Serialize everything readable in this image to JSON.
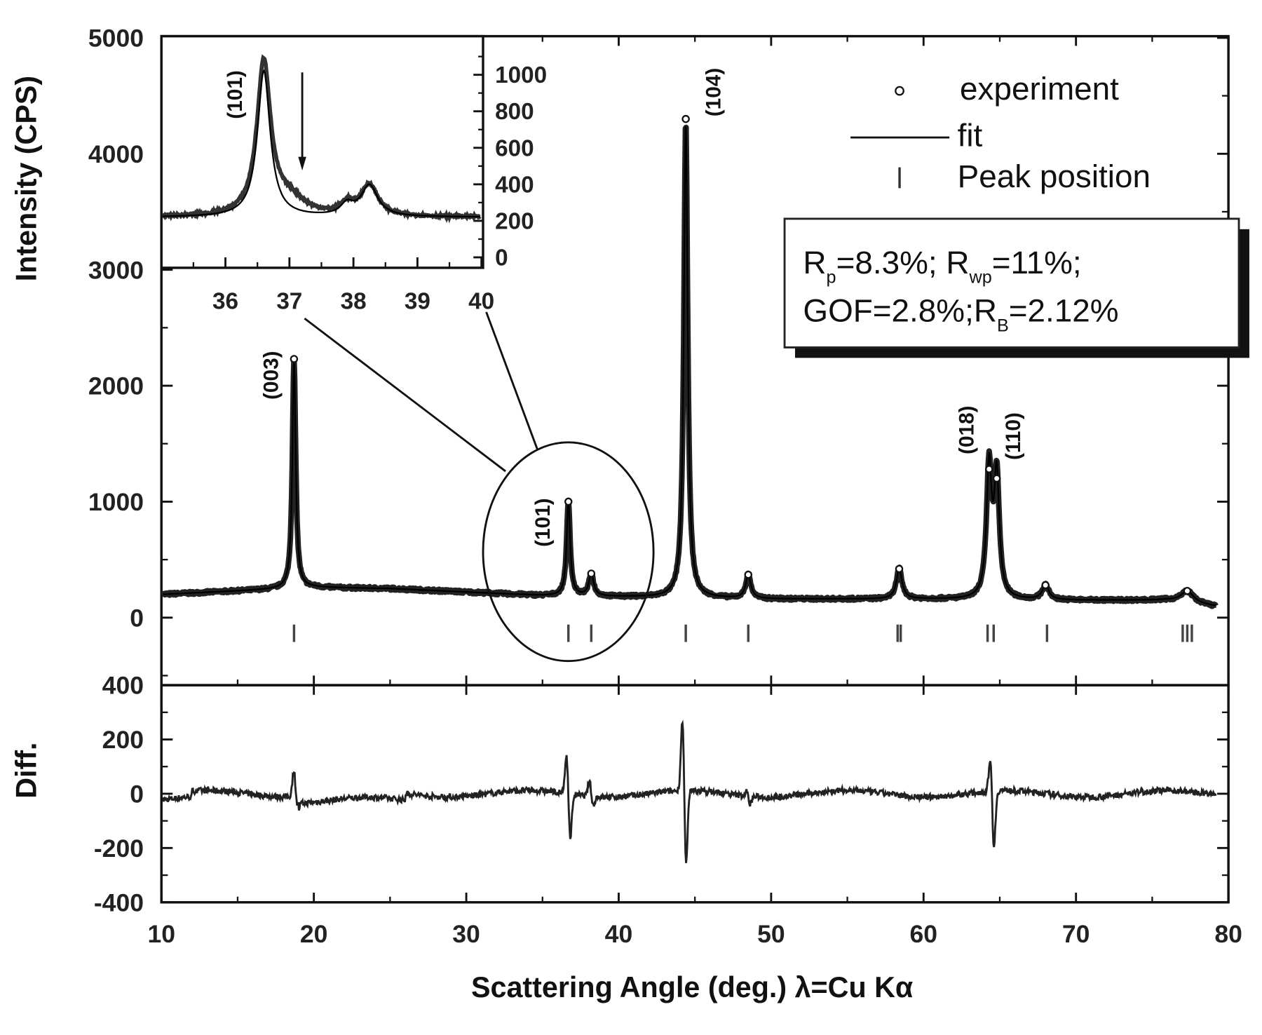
{
  "chart_data": {
    "type": "line",
    "xlabel": "Scattering Angle (deg.) λ=Cu Kα",
    "ylabel": "Intensity (CPS)",
    "diff_ylabel": "Diff.",
    "xlim": [
      10,
      80
    ],
    "ylim": [
      -580,
      5000
    ],
    "diff_ylim": [
      -400,
      400
    ],
    "x_ticks": [
      "10",
      "20",
      "30",
      "40",
      "50",
      "60",
      "70",
      "80"
    ],
    "y_ticks": [
      "0",
      "1000",
      "2000",
      "3000",
      "4000",
      "5000"
    ],
    "diff_y_ticks": [
      "-400",
      "-200",
      "0",
      "200",
      "400"
    ],
    "background": [
      [
        10,
        200
      ],
      [
        15,
        230
      ],
      [
        20,
        260
      ],
      [
        25,
        250
      ],
      [
        30,
        220
      ],
      [
        35,
        190
      ],
      [
        40,
        180
      ],
      [
        45,
        170
      ],
      [
        50,
        160
      ],
      [
        60,
        160
      ],
      [
        70,
        150
      ],
      [
        76,
        150
      ],
      [
        79,
        100
      ]
    ],
    "peaks": [
      {
        "hkl": "(003)",
        "x": 18.7,
        "intensity": 2230,
        "width": 0.13
      },
      {
        "hkl": "(101)",
        "x": 36.7,
        "intensity": 1000,
        "width": 0.14
      },
      {
        "hkl": "",
        "x": 38.2,
        "intensity": 380,
        "width": 0.18
      },
      {
        "hkl": "(104)",
        "x": 44.4,
        "intensity": 4300,
        "width": 0.15
      },
      {
        "hkl": "",
        "x": 48.5,
        "intensity": 370,
        "width": 0.2
      },
      {
        "hkl": "",
        "x": 58.4,
        "intensity": 420,
        "width": 0.22
      },
      {
        "hkl": "(018)",
        "x": 64.3,
        "intensity": 1280,
        "width": 0.2
      },
      {
        "hkl": "(110)",
        "x": 64.8,
        "intensity": 1200,
        "width": 0.2
      },
      {
        "hkl": "",
        "x": 68.0,
        "intensity": 280,
        "width": 0.25
      },
      {
        "hkl": "",
        "x": 77.3,
        "intensity": 230,
        "width": 0.5
      }
    ],
    "peak_positions": [
      18.7,
      36.7,
      38.2,
      44.4,
      48.5,
      58.3,
      58.5,
      64.2,
      64.6,
      68.1,
      77.0,
      77.3,
      77.6
    ],
    "diff_features": [
      {
        "x": 18.8,
        "up": 100,
        "down": -40
      },
      {
        "x": 36.7,
        "up": 160,
        "down": -180
      },
      {
        "x": 38.2,
        "up": 60,
        "down": -40
      },
      {
        "x": 44.3,
        "up": 290,
        "down": -300
      },
      {
        "x": 64.5,
        "up": 140,
        "down": -220
      },
      {
        "x": 48.5,
        "up": 20,
        "down": -30
      }
    ],
    "legend": {
      "position": "top-right",
      "entries": [
        {
          "label": "experiment",
          "marker": "circle"
        },
        {
          "label": "fit",
          "marker": "line"
        },
        {
          "label": "Peak position",
          "marker": "tick"
        }
      ]
    },
    "stats": {
      "line1": {
        "rp_sym": "R",
        "rp_sub": "p",
        "rp_val": "=8.3%; ",
        "rwp_sym": "R",
        "rwp_sub": "wp",
        "rwp_val": "=11%;"
      },
      "line2": {
        "gof": "GOF=2.8%;",
        "rb_sym": "R",
        "rb_sub": "B",
        "rb_val": "=2.12%"
      }
    },
    "inset": {
      "xlim": [
        35,
        40
      ],
      "ylim": [
        -60,
        1210
      ],
      "x_ticks": [
        "36",
        "37",
        "38",
        "39",
        "40"
      ],
      "y_ticks": [
        "0",
        "200",
        "400",
        "600",
        "800",
        "1000"
      ],
      "label": "(101)",
      "arrow_x": 37.2,
      "background": 220,
      "peaks_exp": [
        {
          "x": 36.6,
          "intensity": 840,
          "width": 0.13
        },
        {
          "x": 37.0,
          "intensity": 90,
          "width": 0.3
        },
        {
          "x": 37.9,
          "intensity": 60,
          "width": 0.12
        },
        {
          "x": 38.25,
          "intensity": 170,
          "width": 0.16
        }
      ],
      "peaks_fit": [
        {
          "x": 36.6,
          "intensity": 800,
          "width": 0.12
        },
        {
          "x": 37.9,
          "intensity": 60,
          "width": 0.12
        },
        {
          "x": 38.25,
          "intensity": 170,
          "width": 0.16
        }
      ]
    }
  }
}
